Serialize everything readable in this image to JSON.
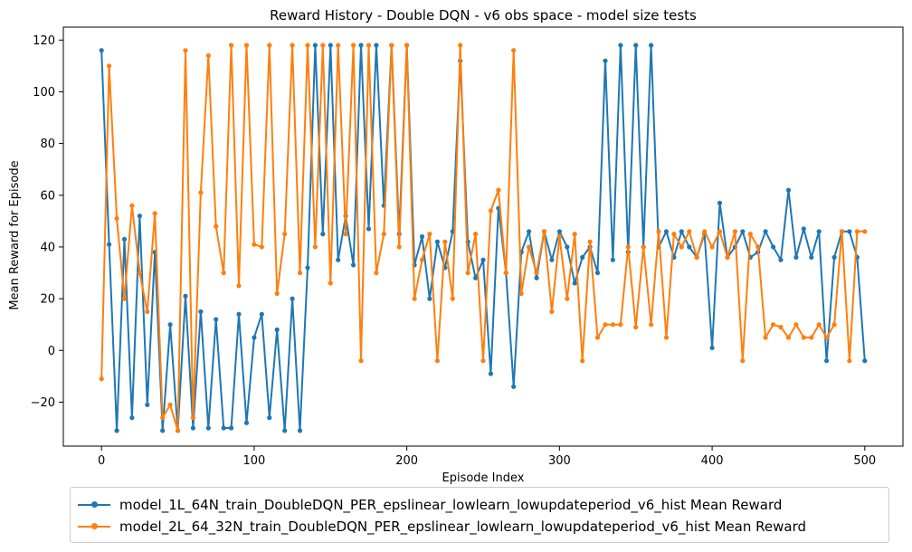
{
  "chart_data": {
    "type": "line",
    "title": "Reward History - Double DQN - v6 obs space - model size tests",
    "xlabel": "Episode Index",
    "ylabel": "Mean Reward for Episode",
    "xlim": [
      -25,
      525
    ],
    "ylim": [
      -37,
      125
    ],
    "xticks": [
      0,
      100,
      200,
      300,
      400,
      500
    ],
    "yticks": [
      -20,
      0,
      20,
      40,
      60,
      80,
      100,
      120
    ],
    "grid": false,
    "legend_position": "below",
    "marker": "circle",
    "series": [
      {
        "name": "model_1L_64N_train_DoubleDQN_PER_epslinear_lowlearn_lowupdateperiod_v6_hist Mean Reward",
        "color": "#1f77b4",
        "x": [
          0,
          5,
          10,
          15,
          20,
          25,
          30,
          35,
          40,
          45,
          50,
          55,
          60,
          65,
          70,
          75,
          80,
          85,
          90,
          95,
          100,
          105,
          110,
          115,
          120,
          125,
          130,
          135,
          140,
          145,
          150,
          155,
          160,
          165,
          170,
          175,
          180,
          185,
          190,
          195,
          200,
          205,
          210,
          215,
          220,
          225,
          230,
          235,
          240,
          245,
          250,
          255,
          260,
          265,
          270,
          275,
          280,
          285,
          290,
          295,
          300,
          305,
          310,
          315,
          320,
          325,
          330,
          335,
          340,
          345,
          350,
          355,
          360,
          365,
          370,
          375,
          380,
          385,
          390,
          395,
          400,
          405,
          410,
          415,
          420,
          425,
          430,
          435,
          440,
          445,
          450,
          455,
          460,
          465,
          470,
          475,
          480,
          485,
          490,
          495,
          500
        ],
        "values": [
          116,
          41,
          -31,
          43,
          -26,
          52,
          -21,
          38,
          -31,
          10,
          -31,
          21,
          -30,
          15,
          -30,
          12,
          -30,
          -30,
          14,
          -28,
          5,
          14,
          -26,
          8,
          -31,
          20,
          -31,
          32,
          118,
          45,
          118,
          35,
          52,
          33,
          118,
          47,
          118,
          56,
          118,
          45,
          118,
          33,
          44,
          20,
          42,
          32,
          46,
          112,
          42,
          28,
          35,
          -9,
          55,
          30,
          -14,
          38,
          46,
          28,
          46,
          35,
          46,
          40,
          26,
          36,
          40,
          30,
          112,
          35,
          118,
          38,
          118,
          40,
          118,
          40,
          46,
          36,
          46,
          40,
          36,
          45,
          1,
          57,
          36,
          40,
          46,
          36,
          38,
          46,
          40,
          35,
          62,
          36,
          47,
          36,
          46,
          -4,
          36,
          46,
          46,
          36,
          -4
        ],
        "markers_only_idx": []
      },
      {
        "name": "model_2L_64_32N_train_DoubleDQN_PER_epslinear_lowlearn_lowupdateperiod_v6_hist Mean Reward",
        "color": "#ff7f0e",
        "x": [
          0,
          5,
          10,
          15,
          20,
          25,
          30,
          35,
          40,
          45,
          50,
          55,
          60,
          65,
          70,
          75,
          80,
          85,
          90,
          95,
          100,
          105,
          110,
          115,
          120,
          125,
          130,
          135,
          140,
          145,
          150,
          155,
          160,
          165,
          170,
          175,
          180,
          185,
          190,
          195,
          200,
          205,
          210,
          215,
          220,
          225,
          230,
          235,
          240,
          245,
          250,
          255,
          260,
          265,
          270,
          275,
          280,
          285,
          290,
          295,
          300,
          305,
          310,
          315,
          320,
          325,
          330,
          335,
          340,
          345,
          350,
          355,
          360,
          365,
          370,
          375,
          380,
          385,
          390,
          395,
          400,
          405,
          410,
          415,
          420,
          425,
          430,
          435,
          440,
          445,
          450,
          455,
          460,
          465,
          470,
          475,
          480,
          485,
          490,
          495,
          500
        ],
        "values": [
          -11,
          110,
          51,
          20,
          56,
          30,
          15,
          53,
          -26,
          -21,
          -31,
          116,
          -26,
          61,
          114,
          48,
          30,
          118,
          25,
          118,
          41,
          40,
          118,
          22,
          45,
          118,
          30,
          118,
          40,
          118,
          26,
          118,
          45,
          118,
          -4,
          118,
          30,
          45,
          118,
          40,
          118,
          20,
          35,
          45,
          -4,
          42,
          20,
          118,
          30,
          45,
          -4,
          54,
          62,
          30,
          116,
          22,
          40,
          30,
          46,
          15,
          44,
          20,
          45,
          -4,
          42,
          5,
          10,
          10,
          10,
          40,
          9,
          40,
          10,
          46,
          5,
          45,
          40,
          46,
          36,
          46,
          40,
          46,
          36,
          46,
          -4,
          45,
          40,
          5,
          10,
          9,
          5,
          10,
          5,
          5,
          10,
          5,
          10,
          46,
          -4,
          46,
          46
        ]
      }
    ]
  }
}
